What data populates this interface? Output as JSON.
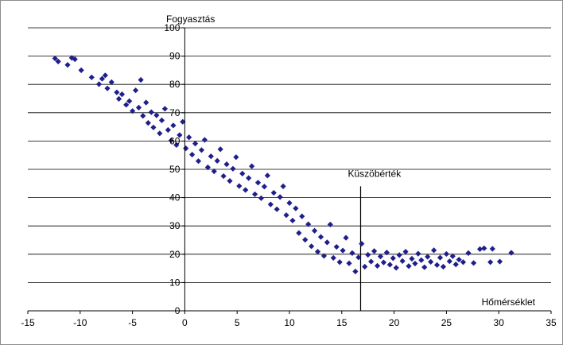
{
  "chart_data": {
    "type": "scatter",
    "title": "",
    "xlabel": "Hőmérséklet",
    "ylabel": "Fogyasztás",
    "xlim": [
      -15,
      35
    ],
    "ylim": [
      0,
      100
    ],
    "x_ticks": [
      "-15",
      "-10",
      "-5",
      "0",
      "5",
      "10",
      "15",
      "20",
      "25",
      "30",
      "35"
    ],
    "y_ticks": [
      "0",
      "10",
      "20",
      "30",
      "40",
      "50",
      "60",
      "70",
      "80",
      "90",
      "100"
    ],
    "grid": "horizontal",
    "legend": "none",
    "marker": "diamond",
    "marker_color": "#1f1f8c",
    "annotation": {
      "label": "Küszöbérték",
      "x": 16.8,
      "y_range": [
        0,
        44
      ]
    },
    "series": [
      {
        "points": [
          [
            -12.4,
            89.2
          ],
          [
            -12.1,
            88.1
          ],
          [
            -11.2,
            86.9
          ],
          [
            -10.8,
            89.4
          ],
          [
            -10.5,
            88.9
          ],
          [
            -9.9,
            85.0
          ],
          [
            -8.9,
            82.5
          ],
          [
            -8.2,
            80.1
          ],
          [
            -7.9,
            82.0
          ],
          [
            -7.6,
            83.2
          ],
          [
            -7.4,
            78.6
          ],
          [
            -7.0,
            80.8
          ],
          [
            -6.5,
            77.2
          ],
          [
            -6.3,
            74.9
          ],
          [
            -6.0,
            76.5
          ],
          [
            -5.6,
            72.8
          ],
          [
            -5.3,
            74.1
          ],
          [
            -5.0,
            70.6
          ],
          [
            -4.7,
            77.9
          ],
          [
            -4.4,
            71.8
          ],
          [
            -4.2,
            81.6
          ],
          [
            -4.0,
            68.9
          ],
          [
            -3.7,
            73.6
          ],
          [
            -3.5,
            66.4
          ],
          [
            -3.2,
            70.2
          ],
          [
            -3.0,
            64.8
          ],
          [
            -2.7,
            69.1
          ],
          [
            -2.4,
            62.7
          ],
          [
            -2.2,
            67.3
          ],
          [
            -1.9,
            71.4
          ],
          [
            -1.6,
            63.9
          ],
          [
            -1.3,
            60.2
          ],
          [
            -1.1,
            65.5
          ],
          [
            -0.8,
            58.6
          ],
          [
            -0.5,
            62.1
          ],
          [
            -0.2,
            66.8
          ],
          [
            0.1,
            57.4
          ],
          [
            0.4,
            61.3
          ],
          [
            0.7,
            55.2
          ],
          [
            1.0,
            59.1
          ],
          [
            1.3,
            52.9
          ],
          [
            1.6,
            56.8
          ],
          [
            1.9,
            60.4
          ],
          [
            2.2,
            50.7
          ],
          [
            2.5,
            54.6
          ],
          [
            2.8,
            49.3
          ],
          [
            3.1,
            53.0
          ],
          [
            3.4,
            57.1
          ],
          [
            3.7,
            47.6
          ],
          [
            4.0,
            51.8
          ],
          [
            4.3,
            45.9
          ],
          [
            4.6,
            50.2
          ],
          [
            4.9,
            54.3
          ],
          [
            5.2,
            44.1
          ],
          [
            5.5,
            48.5
          ],
          [
            5.8,
            42.7
          ],
          [
            6.1,
            46.9
          ],
          [
            6.4,
            51.1
          ],
          [
            6.7,
            41.2
          ],
          [
            7.0,
            45.3
          ],
          [
            7.3,
            39.8
          ],
          [
            7.6,
            43.9
          ],
          [
            7.9,
            47.8
          ],
          [
            8.2,
            37.6
          ],
          [
            8.5,
            41.7
          ],
          [
            8.8,
            35.9
          ],
          [
            9.1,
            40.2
          ],
          [
            9.4,
            44.0
          ],
          [
            9.7,
            33.8
          ],
          [
            10.0,
            38.1
          ],
          [
            10.3,
            31.9
          ],
          [
            10.6,
            36.2
          ],
          [
            10.9,
            27.5
          ],
          [
            11.2,
            33.4
          ],
          [
            11.5,
            25.1
          ],
          [
            11.8,
            30.6
          ],
          [
            12.1,
            22.8
          ],
          [
            12.4,
            28.3
          ],
          [
            12.7,
            20.9
          ],
          [
            13.0,
            26.1
          ],
          [
            13.3,
            19.4
          ],
          [
            13.6,
            24.2
          ],
          [
            13.9,
            30.5
          ],
          [
            14.2,
            18.7
          ],
          [
            14.5,
            22.6
          ],
          [
            14.8,
            17.2
          ],
          [
            15.1,
            21.3
          ],
          [
            15.4,
            25.8
          ],
          [
            15.7,
            16.8
          ],
          [
            16.0,
            20.4
          ],
          [
            16.3,
            13.9
          ],
          [
            16.6,
            18.9
          ],
          [
            16.9,
            23.7
          ],
          [
            17.2,
            15.6
          ],
          [
            17.5,
            19.8
          ],
          [
            17.8,
            17.4
          ],
          [
            18.1,
            21.1
          ],
          [
            18.4,
            15.9
          ],
          [
            18.7,
            19.2
          ],
          [
            19.0,
            17.1
          ],
          [
            19.3,
            20.6
          ],
          [
            19.6,
            16.3
          ],
          [
            19.9,
            18.6
          ],
          [
            20.2,
            15.2
          ],
          [
            20.5,
            19.7
          ],
          [
            20.8,
            17.6
          ],
          [
            21.1,
            20.9
          ],
          [
            21.4,
            15.8
          ],
          [
            21.7,
            18.4
          ],
          [
            22.0,
            16.7
          ],
          [
            22.3,
            20.2
          ],
          [
            22.6,
            17.9
          ],
          [
            22.9,
            15.4
          ],
          [
            23.2,
            19.1
          ],
          [
            23.5,
            17.3
          ],
          [
            23.8,
            21.4
          ],
          [
            24.1,
            16.2
          ],
          [
            24.4,
            18.8
          ],
          [
            24.7,
            15.6
          ],
          [
            25.0,
            20.1
          ],
          [
            25.3,
            17.5
          ],
          [
            25.6,
            19.3
          ],
          [
            25.9,
            16.4
          ],
          [
            26.2,
            18.1
          ],
          [
            26.6,
            17.2
          ],
          [
            27.1,
            20.4
          ],
          [
            27.6,
            16.9
          ],
          [
            28.2,
            21.8
          ],
          [
            28.6,
            22.1
          ],
          [
            29.2,
            17.2
          ],
          [
            29.4,
            21.9
          ],
          [
            30.1,
            17.4
          ],
          [
            31.2,
            20.5
          ]
        ]
      }
    ]
  }
}
